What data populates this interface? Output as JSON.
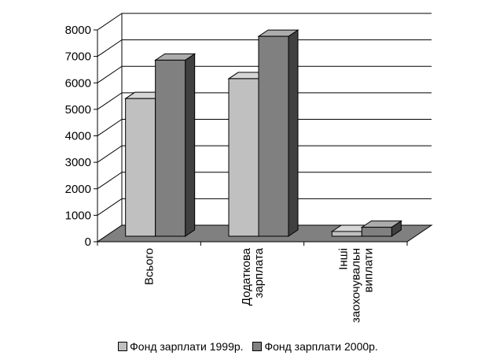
{
  "chart_data": {
    "type": "bar",
    "three_d": true,
    "categories": [
      [
        "Всього"
      ],
      [
        "Додаткова",
        "зарплата"
      ],
      [
        "Інші",
        "заохочувальн",
        "виплати"
      ]
    ],
    "category_label_orientation": "vertical",
    "series": [
      {
        "name": "Фонд зарплати 1999р.",
        "values": [
          5200,
          5950,
          180
        ],
        "color": "#c0c0c0"
      },
      {
        "name": "Фонд зарплати 2000р.",
        "values": [
          6650,
          7550,
          340
        ],
        "color": "#808080"
      }
    ],
    "ylim": [
      0,
      8000
    ],
    "yticks": [
      "0",
      "1000",
      "2000",
      "3000",
      "4000",
      "5000",
      "6000",
      "7000",
      "8000"
    ],
    "grid": true,
    "legend_position": "bottom",
    "floor_color": "#808080"
  }
}
